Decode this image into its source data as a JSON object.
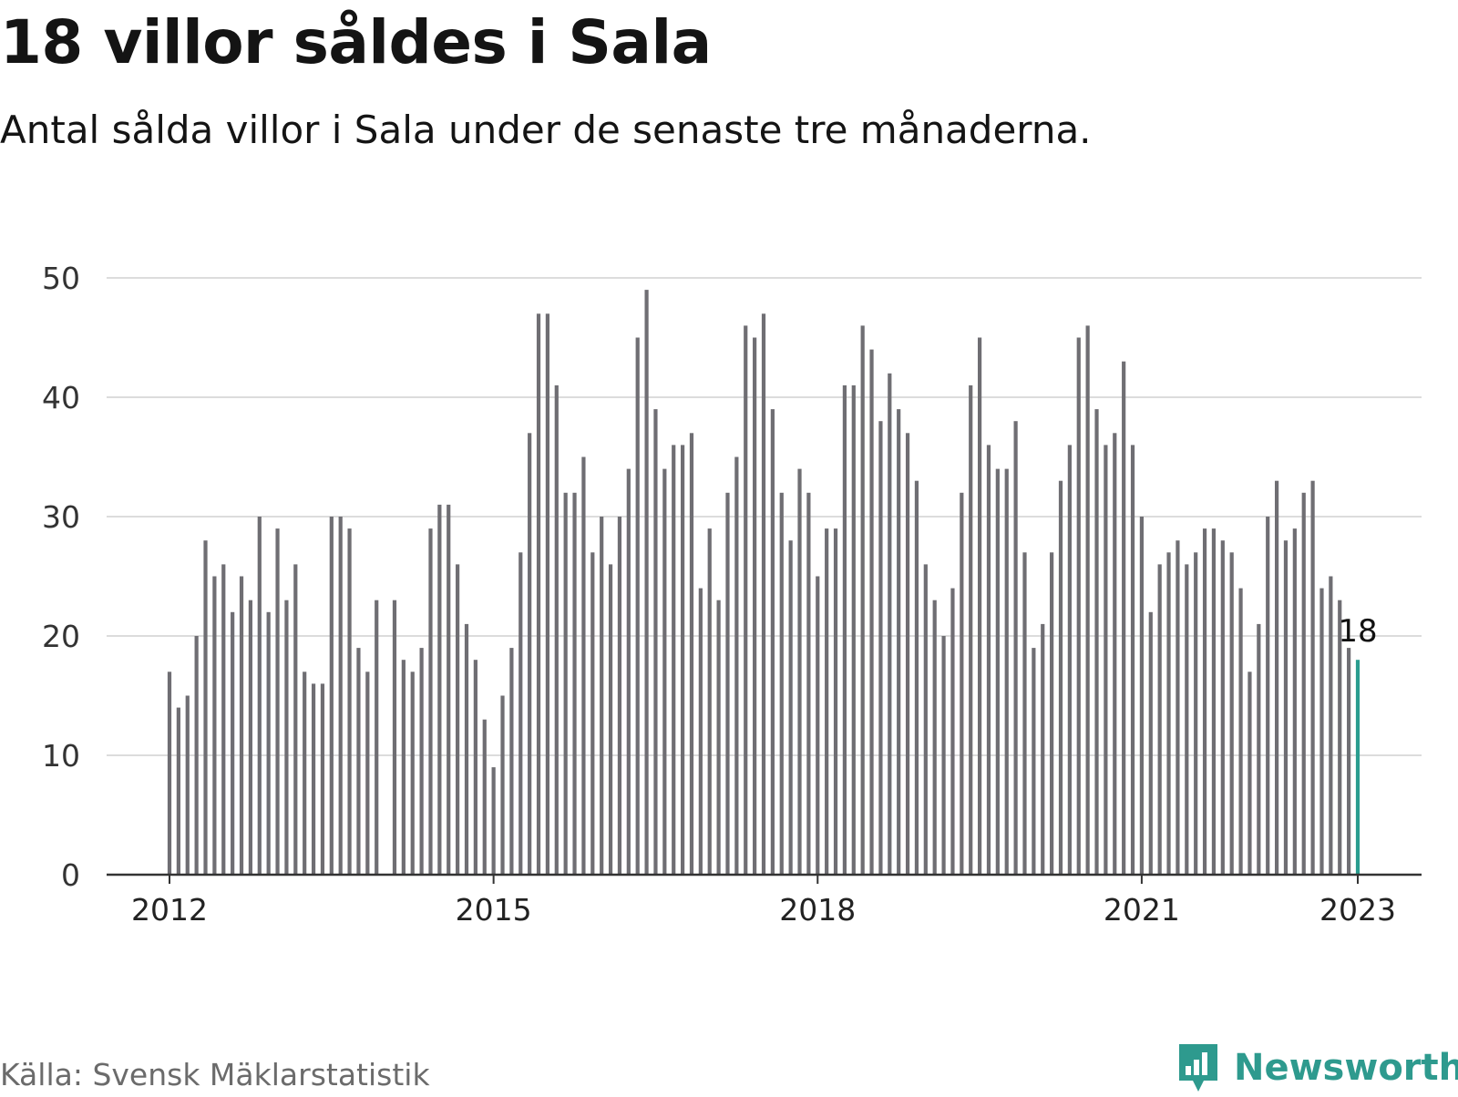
{
  "title": "18 villor såldes i Sala",
  "subtitle": "Antal sålda villor i Sala under de senaste tre månaderna.",
  "source": "Källa: Svensk Mäklarstatistik",
  "brand": {
    "name": "Newsworthy",
    "icon": "newsworthy-chat-bar-icon"
  },
  "colors": {
    "bar": "#6f6e73",
    "highlight": "#2a9d8f",
    "grid": "#dcdcdc",
    "axis": "#333333",
    "brand": "#2e9a8e"
  },
  "chart_data": {
    "type": "bar",
    "title": "18 villor såldes i Sala",
    "xlabel": "",
    "ylabel": "",
    "ylim": [
      0,
      50
    ],
    "yticks": [
      0,
      10,
      20,
      30,
      40,
      50
    ],
    "grid": true,
    "xtick_labels": [
      "2012",
      "2015",
      "2018",
      "2021",
      "2023"
    ],
    "x_start": "2012-01",
    "x_end": "2023-01",
    "highlight": {
      "x": "2023-01",
      "value": 18,
      "label": "18"
    },
    "series": [
      {
        "name": "",
        "x": [
          "2012-01",
          "2012-02",
          "2012-03",
          "2012-04",
          "2012-05",
          "2012-06",
          "2012-07",
          "2012-08",
          "2012-09",
          "2012-10",
          "2012-11",
          "2012-12",
          "2013-01",
          "2013-02",
          "2013-03",
          "2013-04",
          "2013-05",
          "2013-06",
          "2013-07",
          "2013-08",
          "2013-09",
          "2013-10",
          "2013-11",
          "2013-12",
          "2014-01",
          "2014-02",
          "2014-03",
          "2014-04",
          "2014-05",
          "2014-06",
          "2014-07",
          "2014-08",
          "2014-09",
          "2014-10",
          "2014-11",
          "2014-12",
          "2015-01",
          "2015-02",
          "2015-03",
          "2015-04",
          "2015-05",
          "2015-06",
          "2015-07",
          "2015-08",
          "2015-09",
          "2015-10",
          "2015-11",
          "2015-12",
          "2016-01",
          "2016-02",
          "2016-03",
          "2016-04",
          "2016-05",
          "2016-06",
          "2016-07",
          "2016-08",
          "2016-09",
          "2016-10",
          "2016-11",
          "2016-12",
          "2017-01",
          "2017-02",
          "2017-03",
          "2017-04",
          "2017-05",
          "2017-06",
          "2017-07",
          "2017-08",
          "2017-09",
          "2017-10",
          "2017-11",
          "2017-12",
          "2018-01",
          "2018-02",
          "2018-03",
          "2018-04",
          "2018-05",
          "2018-06",
          "2018-07",
          "2018-08",
          "2018-09",
          "2018-10",
          "2018-11",
          "2018-12",
          "2019-01",
          "2019-02",
          "2019-03",
          "2019-04",
          "2019-05",
          "2019-06",
          "2019-07",
          "2019-08",
          "2019-09",
          "2019-10",
          "2019-11",
          "2019-12",
          "2020-01",
          "2020-02",
          "2020-03",
          "2020-04",
          "2020-05",
          "2020-06",
          "2020-07",
          "2020-08",
          "2020-09",
          "2020-10",
          "2020-11",
          "2020-12",
          "2021-01",
          "2021-02",
          "2021-03",
          "2021-04",
          "2021-05",
          "2021-06",
          "2021-07",
          "2021-08",
          "2021-09",
          "2021-10",
          "2021-11",
          "2021-12",
          "2022-01",
          "2022-02",
          "2022-03",
          "2022-04",
          "2022-05",
          "2022-06",
          "2022-07",
          "2022-08",
          "2022-09",
          "2022-10",
          "2022-11",
          "2022-12",
          "2023-01"
        ],
        "values": [
          17,
          14,
          15,
          20,
          28,
          25,
          26,
          22,
          25,
          23,
          30,
          22,
          29,
          23,
          26,
          17,
          16,
          16,
          30,
          30,
          29,
          19,
          17,
          23,
          null,
          23,
          18,
          17,
          19,
          29,
          31,
          31,
          26,
          21,
          18,
          13,
          9,
          15,
          19,
          27,
          37,
          47,
          47,
          41,
          32,
          32,
          35,
          27,
          30,
          26,
          30,
          34,
          45,
          49,
          39,
          34,
          36,
          36,
          37,
          24,
          29,
          23,
          32,
          35,
          46,
          45,
          47,
          39,
          32,
          28,
          34,
          32,
          25,
          29,
          29,
          41,
          41,
          46,
          44,
          38,
          42,
          39,
          37,
          33,
          26,
          23,
          20,
          24,
          32,
          41,
          45,
          36,
          34,
          34,
          38,
          27,
          19,
          21,
          27,
          33,
          36,
          45,
          46,
          39,
          36,
          37,
          43,
          36,
          30,
          22,
          26,
          27,
          28,
          26,
          27,
          29,
          29,
          28,
          27,
          24,
          17,
          21,
          30,
          33,
          28,
          29,
          32,
          33,
          24,
          25,
          23,
          19,
          18
        ]
      }
    ]
  }
}
